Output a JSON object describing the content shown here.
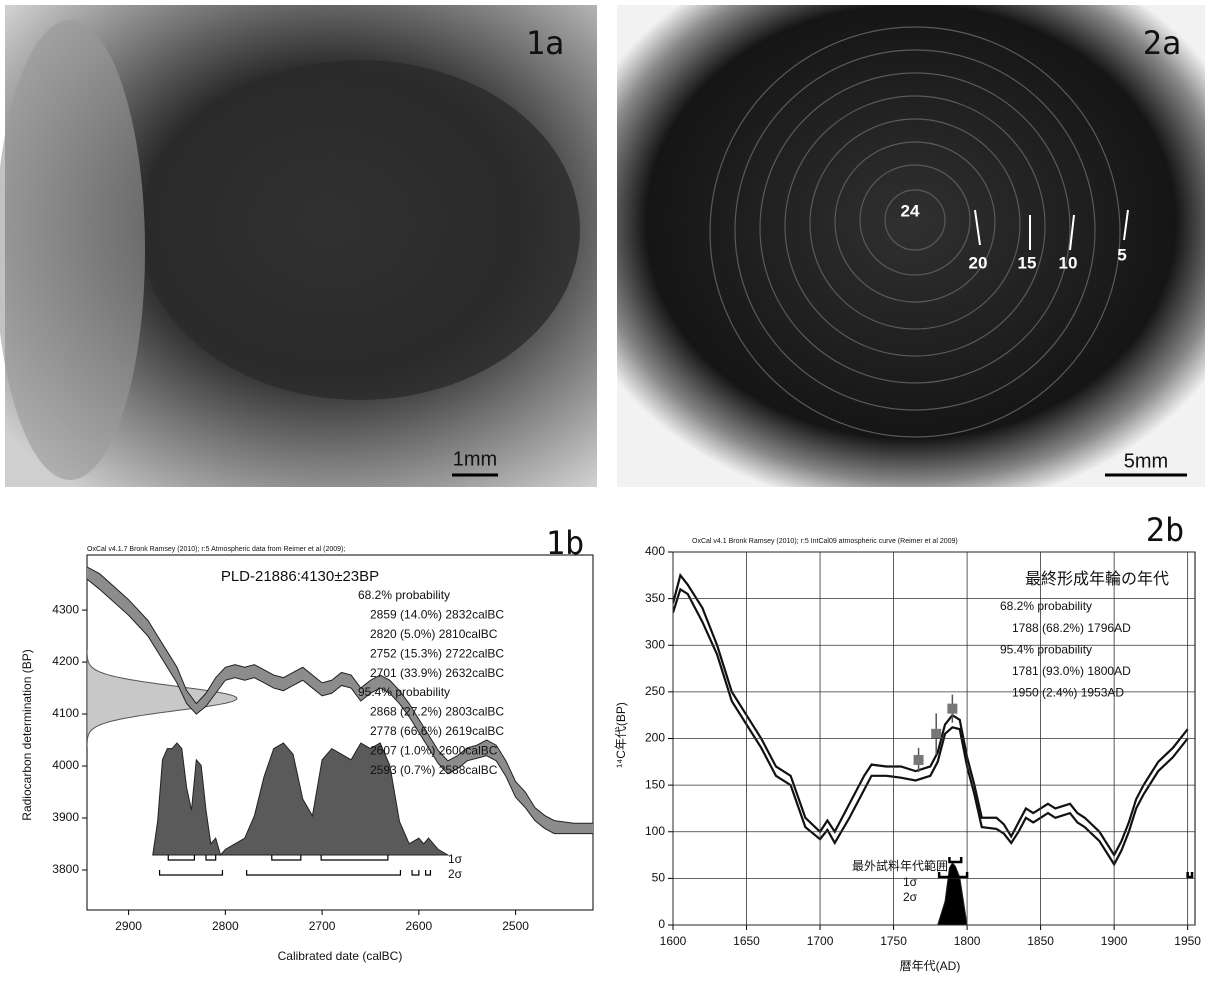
{
  "photos": [
    {
      "label": "1a",
      "scale": "1mm"
    },
    {
      "label": "2a",
      "scale": "5mm",
      "ring_labels": [
        "24",
        "20",
        "15",
        "10",
        "5"
      ]
    }
  ],
  "chart_data": [
    {
      "type": "calibration",
      "panel": "1b",
      "title": "OxCal v4.1.7 Bronk Ramsey (2010); r:5 Atmospheric data from Reimer et al (2009);",
      "sample": "PLD-21886:4130±23BP",
      "results": [
        "68.2% probability",
        "2859 (14.0%) 2832calBC",
        "2820 (5.0%) 2810calBC",
        "2752 (15.3%) 2722calBC",
        "2701 (33.9%) 2632calBC",
        "95.4% probability",
        "2868 (27.2%) 2803calBC",
        "2778 (66.6%) 2619calBC",
        "2607 (1.0%) 2600calBC",
        "2593 (0.7%) 2588calBC"
      ],
      "xlabel": "Calibrated date (calBC)",
      "ylabel": "Radiocarbon determination (BP)",
      "xlim": [
        2943,
        2420
      ],
      "ylim": [
        3723,
        4406
      ],
      "xticks": [
        2900,
        2800,
        2700,
        2600,
        2500
      ],
      "yticks": [
        3800,
        3900,
        4000,
        4100,
        4200,
        4300
      ],
      "grid": false,
      "curve_style": "band",
      "color": "#8c8c8c",
      "curve": {
        "x": [
          2950,
          2930,
          2900,
          2880,
          2860,
          2850,
          2840,
          2830,
          2820,
          2810,
          2800,
          2790,
          2780,
          2770,
          2760,
          2750,
          2740,
          2730,
          2720,
          2710,
          2700,
          2690,
          2680,
          2670,
          2660,
          2650,
          2640,
          2630,
          2620,
          2610,
          2600,
          2590,
          2580,
          2570,
          2560,
          2550,
          2540,
          2530,
          2520,
          2510,
          2500,
          2490,
          2480,
          2470,
          2460,
          2440,
          2420
        ],
        "upper": [
          4390,
          4370,
          4320,
          4280,
          4220,
          4190,
          4145,
          4120,
          4140,
          4170,
          4190,
          4195,
          4190,
          4195,
          4185,
          4175,
          4170,
          4180,
          4190,
          4175,
          4160,
          4165,
          4180,
          4175,
          4150,
          4165,
          4175,
          4165,
          4145,
          4120,
          4090,
          4060,
          4030,
          4010,
          4020,
          4035,
          4040,
          4050,
          4040,
          4010,
          3970,
          3950,
          3920,
          3905,
          3895,
          3890,
          3890
        ],
        "lower": [
          4370,
          4340,
          4290,
          4250,
          4190,
          4160,
          4120,
          4100,
          4115,
          4140,
          4165,
          4170,
          4165,
          4170,
          4160,
          4150,
          4145,
          4155,
          4165,
          4150,
          4135,
          4140,
          4155,
          4150,
          4125,
          4140,
          4150,
          4140,
          4120,
          4095,
          4065,
          4035,
          4005,
          3985,
          3995,
          4010,
          4015,
          4020,
          4010,
          3980,
          3940,
          3920,
          3895,
          3880,
          3870,
          3870,
          3870
        ]
      },
      "measurement": {
        "mean": 4130,
        "error": 23
      },
      "distribution": {
        "x": [
          2875,
          2870,
          2865,
          2860,
          2855,
          2850,
          2845,
          2840,
          2835,
          2830,
          2825,
          2820,
          2815,
          2810,
          2805,
          2800,
          2790,
          2780,
          2770,
          2760,
          2750,
          2740,
          2730,
          2720,
          2710,
          2700,
          2690,
          2680,
          2670,
          2660,
          2650,
          2640,
          2630,
          2620,
          2610,
          2600,
          2595,
          2590,
          2580,
          2570
        ],
        "values": [
          0,
          30,
          85,
          95,
          95,
          100,
          95,
          60,
          40,
          85,
          80,
          40,
          10,
          15,
          0,
          5,
          10,
          15,
          35,
          70,
          95,
          100,
          90,
          50,
          35,
          85,
          95,
          90,
          85,
          100,
          95,
          100,
          80,
          30,
          10,
          15,
          10,
          15,
          5,
          0
        ]
      },
      "ranges": [
        {
          "sigma": "1σ",
          "spans": [
            [
              2859,
              2832
            ],
            [
              2820,
              2810
            ],
            [
              2752,
              2722
            ],
            [
              2701,
              2632
            ]
          ]
        },
        {
          "sigma": "2σ",
          "spans": [
            [
              2868,
              2803
            ],
            [
              2778,
              2619
            ],
            [
              2607,
              2600
            ],
            [
              2593,
              2588
            ]
          ]
        }
      ]
    },
    {
      "type": "calibration",
      "panel": "2b",
      "title": "OxCal v4.1 Bronk Ramsey (2010); r:5 IntCal09 atmospheric curve (Reimer et al 2009)",
      "header": "最終形成年輪の年代",
      "results": [
        "68.2% probability",
        "1788 (68.2%) 1796AD",
        "95.4% probability",
        "1781 (93.0%) 1800AD",
        "1950 (2.4%) 1953AD"
      ],
      "range_title": "最外試料年代範囲",
      "xlabel": "暦年代(AD)",
      "ylabel": "¹⁴C年代(BP)",
      "xlim": [
        1600,
        1955
      ],
      "ylim": [
        0,
        400
      ],
      "xticks": [
        1600,
        1650,
        1700,
        1750,
        1800,
        1850,
        1900,
        1950
      ],
      "yticks": [
        0,
        50,
        100,
        150,
        200,
        250,
        300,
        350,
        400
      ],
      "grid": true,
      "curve_style": "lines",
      "color": "#111111",
      "curve": {
        "x": [
          1600,
          1605,
          1610,
          1620,
          1630,
          1640,
          1650,
          1660,
          1670,
          1680,
          1690,
          1700,
          1705,
          1710,
          1720,
          1730,
          1735,
          1745,
          1755,
          1765,
          1775,
          1780,
          1785,
          1790,
          1795,
          1800,
          1805,
          1810,
          1820,
          1825,
          1830,
          1835,
          1840,
          1845,
          1850,
          1855,
          1860,
          1870,
          1875,
          1880,
          1890,
          1900,
          1905,
          1910,
          1915,
          1920,
          1930,
          1940,
          1950
        ],
        "upper": [
          345,
          375,
          365,
          340,
          300,
          250,
          225,
          200,
          170,
          160,
          115,
          100,
          112,
          100,
          130,
          160,
          172,
          170,
          170,
          165,
          170,
          185,
          215,
          225,
          220,
          180,
          150,
          115,
          115,
          108,
          95,
          110,
          125,
          120,
          125,
          130,
          125,
          130,
          120,
          115,
          100,
          75,
          90,
          110,
          135,
          150,
          175,
          190,
          210
        ],
        "lower": [
          335,
          360,
          355,
          325,
          290,
          240,
          215,
          190,
          160,
          150,
          105,
          92,
          102,
          88,
          115,
          145,
          160,
          160,
          158,
          155,
          160,
          175,
          205,
          212,
          210,
          170,
          140,
          105,
          103,
          98,
          88,
          100,
          115,
          110,
          115,
          120,
          115,
          120,
          110,
          105,
          90,
          65,
          80,
          100,
          125,
          140,
          165,
          180,
          200
        ]
      },
      "points": {
        "x": [
          1767,
          1779,
          1790
        ],
        "values": [
          177,
          205,
          232
        ],
        "errors": [
          13,
          22,
          15
        ],
        "color": "#777777"
      },
      "distribution": {
        "x": [
          1780,
          1785,
          1788,
          1790,
          1792,
          1795,
          1800
        ],
        "values": [
          0,
          38,
          92,
          100,
          95,
          77,
          0
        ]
      },
      "ranges": [
        {
          "sigma": "1σ",
          "spans": [
            [
              1788,
              1796
            ]
          ]
        },
        {
          "sigma": "2σ",
          "spans": [
            [
              1781,
              1800
            ],
            [
              1950,
              1953
            ]
          ]
        }
      ]
    }
  ]
}
